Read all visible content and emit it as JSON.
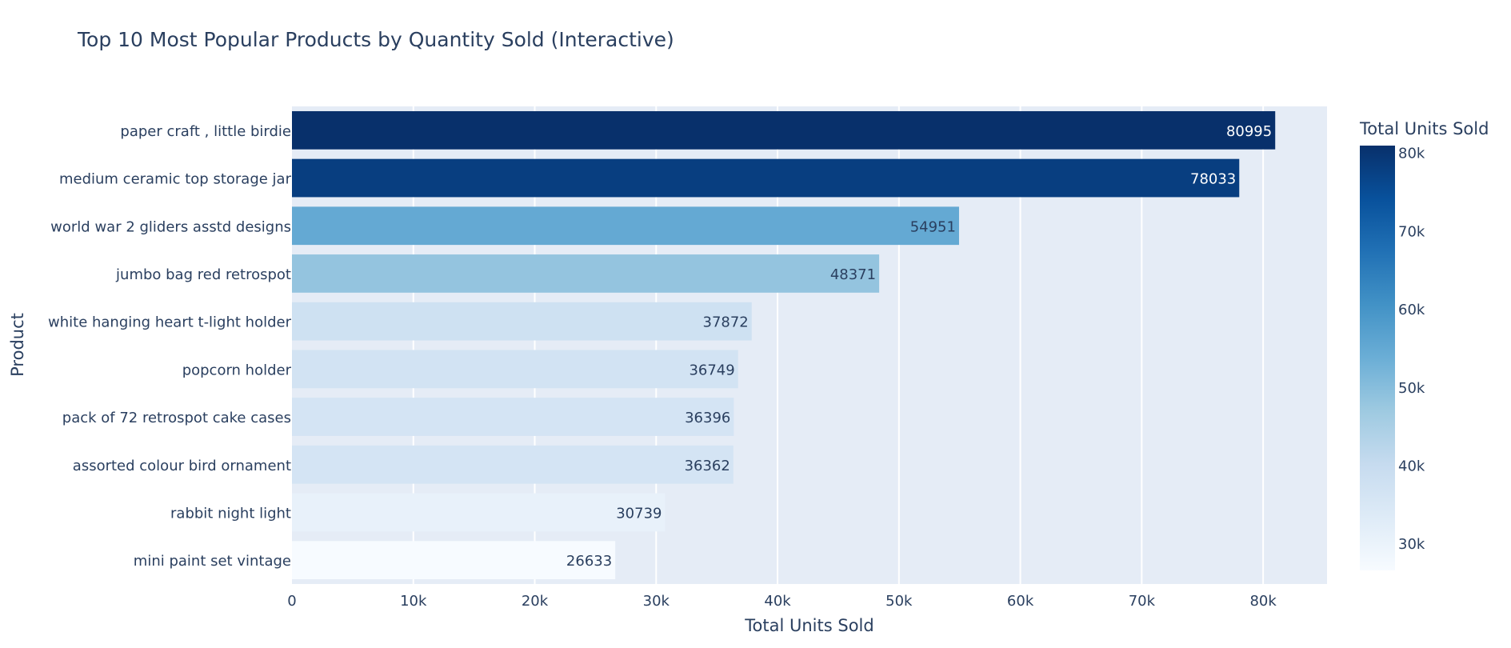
{
  "chart_data": {
    "type": "bar",
    "orientation": "horizontal",
    "title": "Top 10 Most Popular Products by Quantity Sold (Interactive)",
    "xlabel": "Total Units Sold",
    "ylabel": "Product",
    "xlim": [
      0,
      85263
    ],
    "x_ticks": [
      "0",
      "10k",
      "20k",
      "30k",
      "40k",
      "50k",
      "60k",
      "70k",
      "80k"
    ],
    "x_tick_values": [
      0,
      10000,
      20000,
      30000,
      40000,
      50000,
      60000,
      70000,
      80000
    ],
    "categories": [
      "paper craft , little birdie",
      "medium ceramic top storage jar",
      "world war 2 gliders asstd designs",
      "jumbo bag red retrospot",
      "white hanging heart t-light holder",
      "popcorn holder",
      "pack of 72 retrospot cake cases",
      "assorted colour bird ornament",
      "rabbit night light",
      "mini paint set vintage"
    ],
    "values": [
      80995,
      78033,
      54951,
      48371,
      37872,
      36749,
      36396,
      36362,
      30739,
      26633
    ],
    "grid": true,
    "colorbar": {
      "title": "Total Units Sold",
      "colorscale": "Blues",
      "range": [
        26633,
        80995
      ],
      "ticks": [
        "30k",
        "40k",
        "50k",
        "60k",
        "70k",
        "80k"
      ],
      "tick_values": [
        30000,
        40000,
        50000,
        60000,
        70000,
        80000
      ]
    },
    "colors": {
      "plot_background": "#E5ECF6",
      "grid": "#ffffff",
      "text": "#2a3f5f"
    }
  }
}
